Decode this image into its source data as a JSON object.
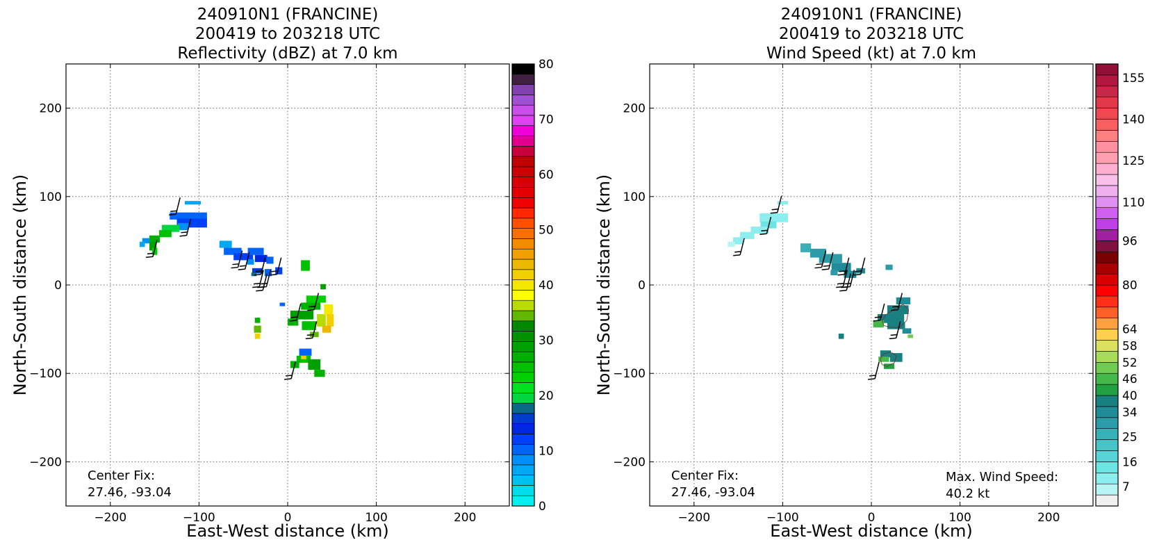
{
  "chart_data": [
    {
      "type": "heatmap",
      "title": [
        "240910N1 (FRANCINE)",
        "200419 to 203218 UTC",
        "Reflectivity (dBZ) at 7.0 km"
      ],
      "xlabel": "East-West distance (km)",
      "ylabel": "North-South distance (km)",
      "xlim": [
        -250,
        250
      ],
      "ylim": [
        -250,
        250
      ],
      "xticks": [
        -200,
        -100,
        0,
        100,
        200
      ],
      "yticks": [
        -200,
        -100,
        0,
        100,
        200
      ],
      "grid": true,
      "colorbar": {
        "range": [
          0,
          80
        ],
        "labels": [
          0,
          10,
          20,
          30,
          40,
          50,
          60,
          70,
          80
        ],
        "colors": [
          "#00f0f0",
          "#00dcec",
          "#00c0f0",
          "#00a8f4",
          "#0090f8",
          "#0064f8",
          "#0040f8",
          "#0028e0",
          "#003cd0",
          "#0a6a86",
          "#00d640",
          "#00e020",
          "#00d000",
          "#00c000",
          "#00b000",
          "#00a000",
          "#009000",
          "#008800",
          "#60b800",
          "#b8dc00",
          "#ffff00",
          "#f4e800",
          "#f0d000",
          "#ecb800",
          "#f0a000",
          "#f48c00",
          "#f87000",
          "#ff5000",
          "#ff2800",
          "#f00000",
          "#e40000",
          "#d80000",
          "#cc0000",
          "#c00000",
          "#c8003c",
          "#e0008c",
          "#f000d8",
          "#e040f0",
          "#c850e8",
          "#a050d0",
          "#8040b0",
          "#402040",
          "#000000"
        ]
      },
      "center_fix": {
        "label": "Center Fix:",
        "value": "27.46, -93.04"
      },
      "cells": [
        [
          -107,
          93,
          18,
          4,
          "#00a8f4"
        ],
        [
          -112,
          78,
          42,
          8,
          "#0064f8"
        ],
        [
          -108,
          70,
          34,
          10,
          "#0040f8"
        ],
        [
          -118,
          66,
          12,
          8,
          "#0090f8"
        ],
        [
          -132,
          64,
          20,
          8,
          "#00d640"
        ],
        [
          -138,
          58,
          14,
          8,
          "#00c000"
        ],
        [
          -150,
          52,
          12,
          8,
          "#00b000"
        ],
        [
          -152,
          44,
          8,
          10,
          "#00a000"
        ],
        [
          -160,
          50,
          8,
          6,
          "#0090f8"
        ],
        [
          -164,
          46,
          6,
          6,
          "#00a8f4"
        ],
        [
          -150,
          38,
          6,
          8,
          "#00d000"
        ],
        [
          -70,
          46,
          14,
          8,
          "#00a8f4"
        ],
        [
          -62,
          38,
          20,
          8,
          "#0064f8"
        ],
        [
          -50,
          32,
          22,
          8,
          "#0040f8"
        ],
        [
          -36,
          38,
          18,
          8,
          "#0064f8"
        ],
        [
          -30,
          30,
          14,
          8,
          "#0028e0"
        ],
        [
          -20,
          28,
          8,
          8,
          "#0064f8"
        ],
        [
          -42,
          26,
          8,
          6,
          "#0090f8"
        ],
        [
          -34,
          16,
          12,
          6,
          "#003cd0"
        ],
        [
          -22,
          14,
          8,
          8,
          "#0064f8"
        ],
        [
          -10,
          16,
          8,
          8,
          "#0040f8"
        ],
        [
          -38,
          12,
          6,
          4,
          "#0a6a86"
        ],
        [
          20,
          22,
          10,
          12,
          "#00c000"
        ],
        [
          -6,
          -22,
          6,
          4,
          "#0064f8"
        ],
        [
          40,
          -2,
          6,
          6,
          "#00a000"
        ],
        [
          32,
          -16,
          22,
          8,
          "#00d000"
        ],
        [
          26,
          -24,
          22,
          8,
          "#00b000"
        ],
        [
          16,
          -34,
          26,
          10,
          "#00a000"
        ],
        [
          6,
          -42,
          12,
          8,
          "#00b000"
        ],
        [
          24,
          -46,
          16,
          10,
          "#00c000"
        ],
        [
          38,
          -40,
          10,
          14,
          "#b8dc00"
        ],
        [
          46,
          -28,
          10,
          12,
          "#f4e800"
        ],
        [
          48,
          -40,
          8,
          14,
          "#f0d000"
        ],
        [
          44,
          -50,
          10,
          8,
          "#ecb800"
        ],
        [
          30,
          -56,
          10,
          6,
          "#60b800"
        ],
        [
          -34,
          -40,
          6,
          6,
          "#00b000"
        ],
        [
          -34,
          -50,
          8,
          8,
          "#60b800"
        ],
        [
          -34,
          -58,
          6,
          6,
          "#f0d000"
        ],
        [
          20,
          -76,
          14,
          8,
          "#0064f8"
        ],
        [
          18,
          -84,
          16,
          8,
          "#00c000"
        ],
        [
          18,
          -82,
          6,
          4,
          "#f0d000"
        ],
        [
          8,
          -90,
          10,
          8,
          "#00b000"
        ],
        [
          30,
          -90,
          14,
          12,
          "#00a000"
        ],
        [
          36,
          -100,
          12,
          8,
          "#00b000"
        ]
      ],
      "barbs": [
        [
          -126,
          80
        ],
        [
          -114,
          56
        ],
        [
          -152,
          32
        ],
        [
          -56,
          20
        ],
        [
          -48,
          18
        ],
        [
          -30,
          12
        ],
        [
          -12,
          12
        ],
        [
          -28,
          -6
        ],
        [
          -32,
          -2
        ],
        [
          -24,
          -2
        ],
        [
          30,
          -28
        ],
        [
          10,
          -40
        ],
        [
          28,
          -60
        ],
        [
          4,
          -106
        ]
      ]
    },
    {
      "type": "heatmap",
      "title": [
        "240910N1 (FRANCINE)",
        "200419 to 203218 UTC",
        "Wind Speed (kt) at 7.0 km"
      ],
      "xlabel": "East-West distance (km)",
      "ylabel": "North-South distance (km)",
      "xlim": [
        -250,
        250
      ],
      "ylim": [
        -250,
        250
      ],
      "xticks": [
        -200,
        -100,
        0,
        100,
        200
      ],
      "yticks": [
        -200,
        -100,
        0,
        100,
        200
      ],
      "grid": true,
      "colorbar": {
        "range": [
          0,
          160
        ],
        "labels": [
          7,
          16,
          25,
          34,
          40,
          46,
          52,
          58,
          64,
          80,
          96,
          110,
          125,
          140,
          155
        ],
        "colors": [
          "#f0f0f0",
          "#b8f4f4",
          "#8ceeee",
          "#6ce4e4",
          "#58d4d8",
          "#48c4c8",
          "#38b0b8",
          "#2c9ca8",
          "#208c98",
          "#188080",
          "#20a040",
          "#44b848",
          "#70cc50",
          "#a8dc58",
          "#dce060",
          "#ffd050",
          "#ffa040",
          "#ff6028",
          "#ff3018",
          "#ff0000",
          "#d80000",
          "#a80000",
          "#780000",
          "#801040",
          "#a020a0",
          "#c040e8",
          "#d060f0",
          "#e090f0",
          "#f0b0f0",
          "#f8c0e8",
          "#ffb0d0",
          "#ffa0b0",
          "#ff90a0",
          "#ff8080",
          "#f86060",
          "#f04850",
          "#e03848",
          "#c82848",
          "#b01840",
          "#901038"
        ]
      },
      "center_fix": {
        "label": "Center Fix:",
        "value": "27.46, -93.04"
      },
      "max_wind": {
        "label": "Max. Wind Speed:",
        "value": "40.2 kt"
      },
      "cells": [
        [
          -100,
          93,
          12,
          4,
          "#8ceeee"
        ],
        [
          -110,
          76,
          32,
          10,
          "#8ceeee"
        ],
        [
          -116,
          68,
          18,
          8,
          "#6ce4e4"
        ],
        [
          -126,
          62,
          20,
          8,
          "#8ceeee"
        ],
        [
          -140,
          56,
          16,
          8,
          "#8ceeee"
        ],
        [
          -150,
          50,
          12,
          8,
          "#8ceeee"
        ],
        [
          -158,
          46,
          8,
          6,
          "#b8f4f4"
        ],
        [
          -74,
          42,
          12,
          10,
          "#38b0b8"
        ],
        [
          -60,
          36,
          18,
          10,
          "#2c9ca8"
        ],
        [
          -46,
          30,
          26,
          10,
          "#2c9ca8"
        ],
        [
          -34,
          20,
          22,
          10,
          "#208c98"
        ],
        [
          -24,
          12,
          14,
          8,
          "#208c98"
        ],
        [
          -12,
          16,
          10,
          6,
          "#208c98"
        ],
        [
          -42,
          14,
          8,
          6,
          "#2c9ca8"
        ],
        [
          20,
          20,
          8,
          6,
          "#2c9ca8"
        ],
        [
          36,
          -18,
          16,
          8,
          "#208c98"
        ],
        [
          30,
          -28,
          24,
          10,
          "#188080"
        ],
        [
          22,
          -38,
          30,
          10,
          "#188080"
        ],
        [
          8,
          -44,
          12,
          8,
          "#44b848"
        ],
        [
          28,
          -46,
          20,
          8,
          "#188080"
        ],
        [
          40,
          -52,
          10,
          6,
          "#208c98"
        ],
        [
          44,
          -58,
          6,
          4,
          "#70cc50"
        ],
        [
          -34,
          -58,
          6,
          6,
          "#188080"
        ],
        [
          16,
          -78,
          12,
          8,
          "#188080"
        ],
        [
          14,
          -84,
          12,
          6,
          "#44b848"
        ],
        [
          28,
          -82,
          14,
          10,
          "#188080"
        ],
        [
          20,
          -92,
          12,
          6,
          "#20a040"
        ]
      ],
      "contours": [
        [
          [
            12,
            -40
          ],
          [
            16,
            -34
          ],
          [
            22,
            -30
          ],
          [
            28,
            -26
          ],
          [
            36,
            -22
          ],
          [
            42,
            -28
          ],
          [
            40,
            -40
          ],
          [
            32,
            -48
          ],
          [
            22,
            -48
          ],
          [
            14,
            -46
          ],
          [
            12,
            -40
          ]
        ],
        [
          [
            10,
            -84
          ],
          [
            14,
            -78
          ],
          [
            22,
            -76
          ],
          [
            28,
            -80
          ],
          [
            26,
            -88
          ],
          [
            18,
            -92
          ],
          [
            12,
            -90
          ],
          [
            10,
            -84
          ]
        ]
      ],
      "barbs": [
        [
          -106,
          82
        ],
        [
          -118,
          58
        ],
        [
          -148,
          34
        ],
        [
          -56,
          20
        ],
        [
          -48,
          18
        ],
        [
          -30,
          12
        ],
        [
          -12,
          12
        ],
        [
          -28,
          -6
        ],
        [
          -32,
          -2
        ],
        [
          -24,
          -2
        ],
        [
          30,
          -28
        ],
        [
          10,
          -40
        ],
        [
          28,
          -60
        ],
        [
          4,
          -106
        ]
      ]
    }
  ]
}
